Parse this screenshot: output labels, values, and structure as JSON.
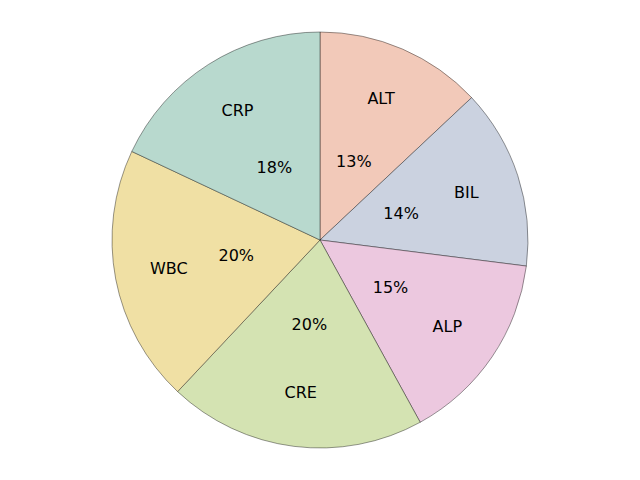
{
  "chart_data": {
    "type": "pie",
    "categories": [
      "ALT",
      "BIL",
      "ALP",
      "CRE",
      "WBC",
      "CRP"
    ],
    "values": [
      13,
      14,
      15,
      20,
      20,
      18
    ],
    "value_labels": [
      "13%",
      "14%",
      "15%",
      "20%",
      "20%",
      "18%"
    ],
    "colors": [
      "#f2c9b9",
      "#cbd2e0",
      "#ecc8df",
      "#d4e3b2",
      "#f0e0a4",
      "#b8d9ce"
    ],
    "data_labels": true
  }
}
